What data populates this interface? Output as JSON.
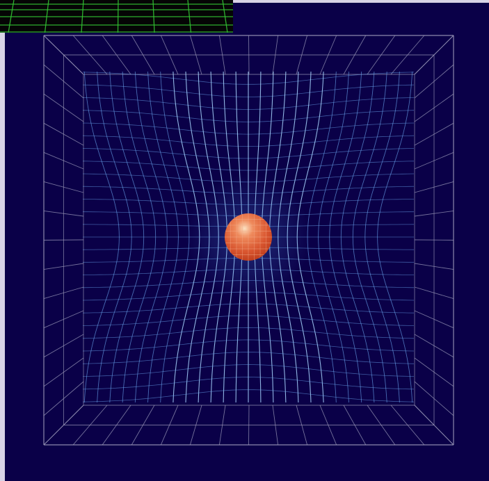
{
  "illustration": {
    "subject": "spacetime-curvature-grid",
    "colors": {
      "background": "#0a0048",
      "frame_margin": "#d8d4e6",
      "outer_grid": "#9a98b8",
      "warped_grid": "#6aa6ee",
      "warped_grid_highlight": "#a8d6ff",
      "mass_outer": "#c8421e",
      "mass_mid": "#e36a3e",
      "mass_highlight": "#fbe0c0",
      "inset_background": "#050505",
      "inset_grid": "#33c233"
    }
  }
}
